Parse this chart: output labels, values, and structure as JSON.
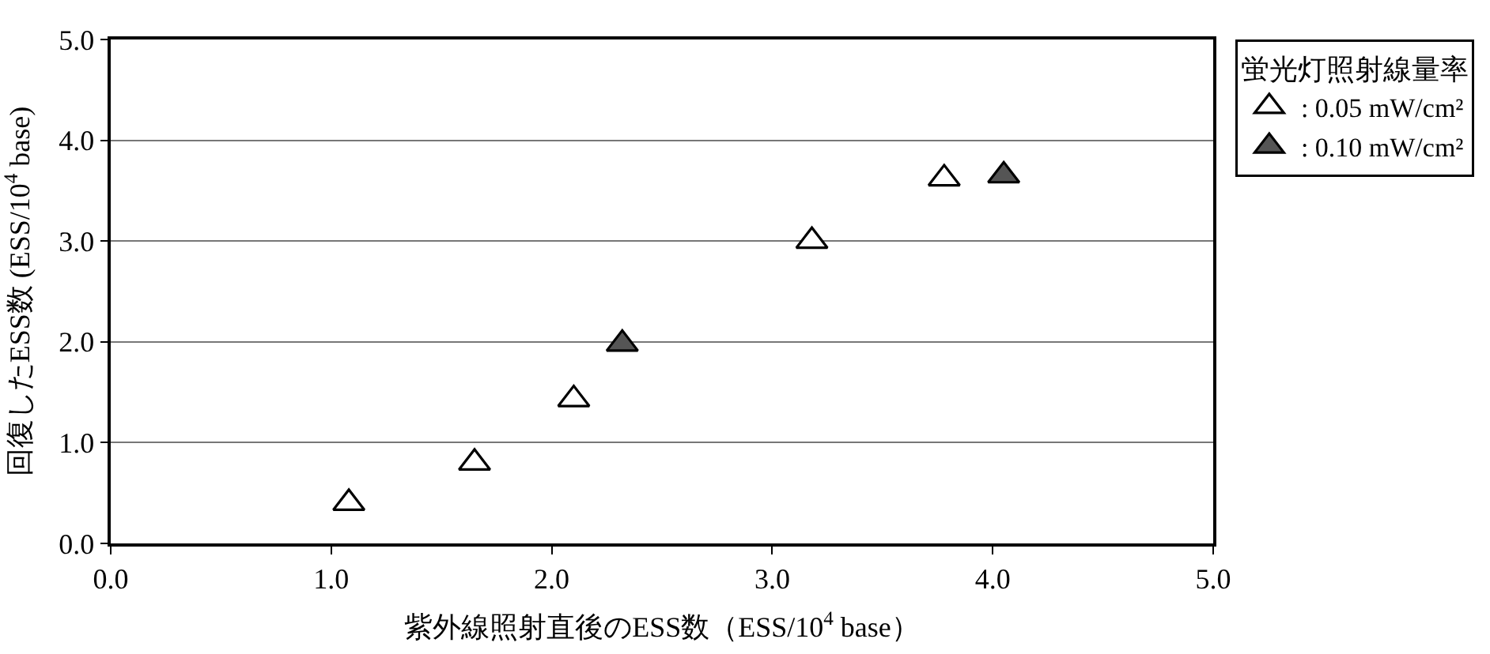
{
  "chart_data": {
    "type": "scatter",
    "xlabel": "紫外線照射直後のESS数（ESS/10$^{4}$ base）",
    "ylabel": "回復したESS数 (ESS/10$^{4}$ base)",
    "legend_title": "蛍光灯照射線量率",
    "series": [
      {
        "name": ": 0.05 mW/cm²",
        "color": "#ffffff",
        "x": [
          1.08,
          1.65,
          2.1,
          3.18,
          3.78
        ],
        "values": [
          0.4,
          0.8,
          1.43,
          3.0,
          3.62
        ]
      },
      {
        "name": ": 0.10 mW/cm²",
        "color": "#555555",
        "x": [
          2.32,
          4.05
        ],
        "values": [
          1.98,
          3.65
        ]
      }
    ],
    "xlim": [
      0,
      5
    ],
    "ylim": [
      0,
      5
    ],
    "xticks": [
      {
        "value": 0,
        "label": "0.0"
      },
      {
        "value": 1,
        "label": "1.0"
      },
      {
        "value": 2,
        "label": "2.0"
      },
      {
        "value": 3,
        "label": "3.0"
      },
      {
        "value": 4,
        "label": "4.0"
      },
      {
        "value": 5,
        "label": "5.0"
      }
    ],
    "yticks": [
      {
        "value": 0,
        "label": "0.0"
      },
      {
        "value": 1,
        "label": "1.0"
      },
      {
        "value": 2,
        "label": "2.0"
      },
      {
        "value": 3,
        "label": "3.0"
      },
      {
        "value": 4,
        "label": "4.0"
      },
      {
        "value": 5,
        "label": "5.0"
      }
    ],
    "grid": "y",
    "legend": "top right",
    "marker": "triangle"
  }
}
